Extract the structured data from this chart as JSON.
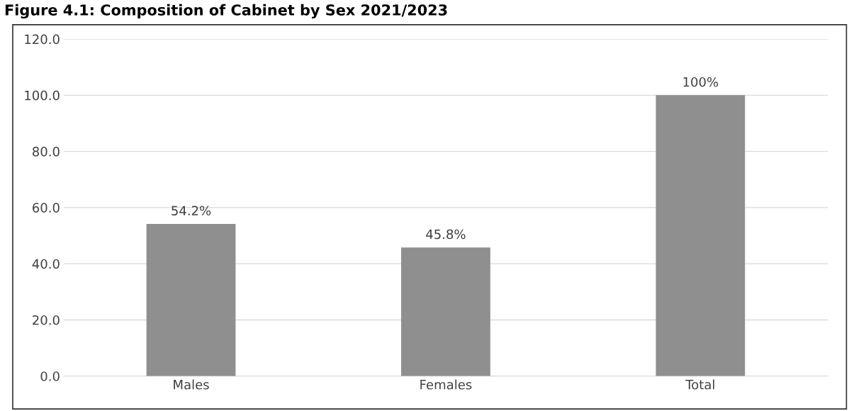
{
  "chart_data": {
    "type": "bar",
    "title": "Figure 4.1: Composition of Cabinet by Sex 2021/2023",
    "categories": [
      "Males",
      "Females",
      "Total"
    ],
    "values": [
      54.2,
      45.8,
      100
    ],
    "value_labels": [
      "54.2%",
      "45.8%",
      "100%"
    ],
    "color": "#8f8f8f",
    "ylim": [
      0,
      120
    ],
    "yticks": [
      {
        "value": 0,
        "label": "0.0"
      },
      {
        "value": 20,
        "label": "20.0"
      },
      {
        "value": 40,
        "label": "40.0"
      },
      {
        "value": 60,
        "label": "60.0"
      },
      {
        "value": 80,
        "label": "80.0"
      },
      {
        "value": 100,
        "label": "100.0"
      },
      {
        "value": 120,
        "label": "120.0"
      }
    ],
    "grid": "y",
    "legend": false
  }
}
